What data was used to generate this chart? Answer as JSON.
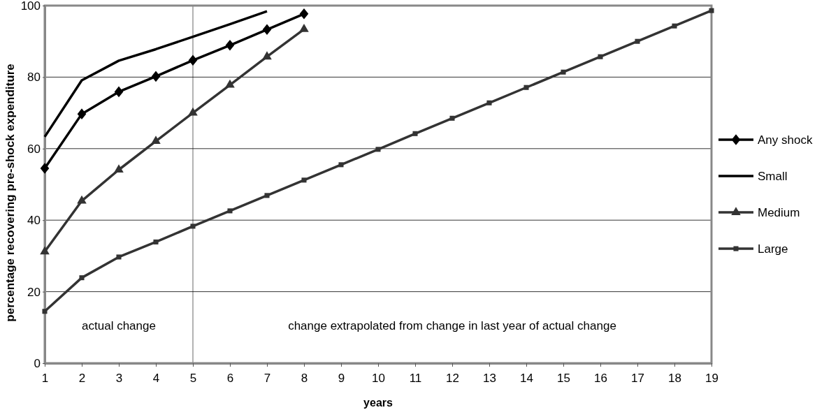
{
  "chart_data": {
    "type": "line",
    "xlabel": "years",
    "ylabel": "percentage recovering pre-shock expenditure",
    "x": [
      1,
      2,
      3,
      4,
      5,
      6,
      7,
      8,
      9,
      10,
      11,
      12,
      13,
      14,
      15,
      16,
      17,
      18,
      19
    ],
    "series": [
      {
        "name": "Any shock",
        "color": "#000000",
        "marker": "diamond",
        "values": [
          54.5,
          69.7,
          75.9,
          80.2,
          84.7,
          88.9,
          93.3,
          97.7,
          null,
          null,
          null,
          null,
          null,
          null,
          null,
          null,
          null,
          null,
          null
        ]
      },
      {
        "name": "Small",
        "color": "#000000",
        "marker": "none",
        "values": [
          63.3,
          79.1,
          84.6,
          87.8,
          91.3,
          94.8,
          98.4,
          null,
          null,
          null,
          null,
          null,
          null,
          null,
          null,
          null,
          null,
          null,
          null
        ]
      },
      {
        "name": "Medium",
        "color": "#333333",
        "marker": "triangle",
        "values": [
          31.2,
          45.4,
          54.1,
          62.1,
          70.0,
          77.8,
          85.7,
          93.4,
          null,
          null,
          null,
          null,
          null,
          null,
          null,
          null,
          null,
          null,
          null
        ]
      },
      {
        "name": "Large",
        "color": "#333333",
        "marker": "square",
        "values": [
          14.5,
          23.9,
          29.7,
          33.9,
          38.3,
          42.6,
          46.9,
          51.2,
          55.5,
          59.8,
          64.2,
          68.5,
          72.8,
          77.1,
          81.4,
          85.7,
          90.0,
          94.3,
          98.6
        ]
      }
    ],
    "xlim": [
      1,
      19
    ],
    "xticks": [
      1,
      2,
      3,
      4,
      5,
      6,
      7,
      8,
      9,
      10,
      11,
      12,
      13,
      14,
      15,
      16,
      17,
      18,
      19
    ],
    "ylim": [
      0,
      100
    ],
    "yticks": [
      0,
      20,
      40,
      60,
      80,
      100
    ],
    "grid": "y",
    "legend": "right",
    "ref_lines": [
      {
        "axis": "x",
        "value": 5,
        "color": "#000000"
      }
    ],
    "annotations": [
      "actual change",
      "change extrapolated from change in last year of actual change"
    ]
  }
}
